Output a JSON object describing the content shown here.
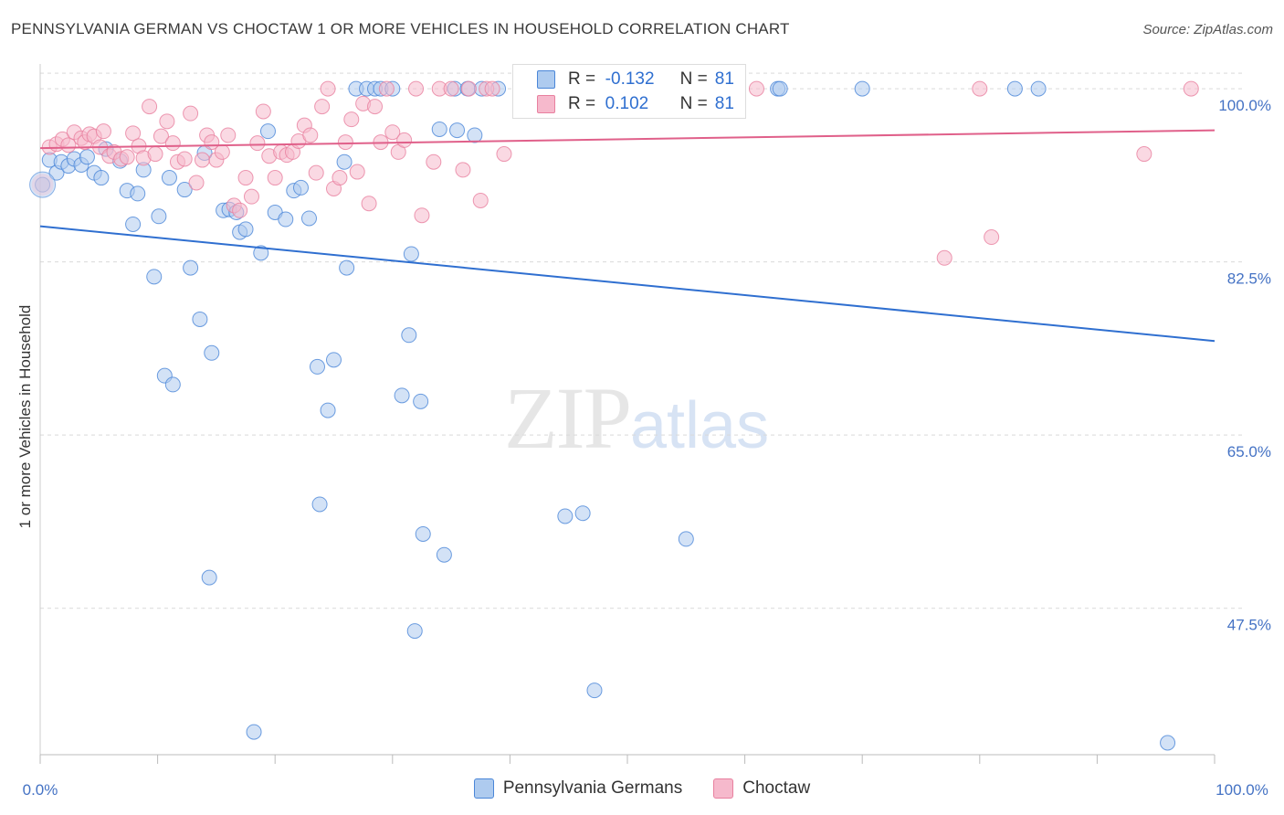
{
  "title": "PENNSYLVANIA GERMAN VS CHOCTAW 1 OR MORE VEHICLES IN HOUSEHOLD CORRELATION CHART",
  "source": "Source: ZipAtlas.com",
  "watermark": {
    "zip": "ZIP",
    "atlas": "atlas"
  },
  "legend": {
    "r_label": "R =",
    "n_label": "N =",
    "rows": [
      {
        "r": "-0.132",
        "n": "81"
      },
      {
        "r": "0.102",
        "n": "81"
      }
    ]
  },
  "colors": {
    "blue_fill": "#aecbef",
    "blue_stroke": "#4a86d8",
    "blue_line": "#2f6fd0",
    "pink_fill": "#f6b9cc",
    "pink_stroke": "#e8809f",
    "pink_line": "#e0608a",
    "grid": "#d9d9d9",
    "tick_text": "#4472c4"
  },
  "chart_data": {
    "type": "scatter",
    "xlabel": "",
    "ylabel": "1 or more Vehicles in Household",
    "xlim": [
      0,
      100
    ],
    "ylim": [
      32.7,
      102.5
    ],
    "x_tick_labels": [
      "0.0%",
      "100.0%"
    ],
    "y_ticks": [
      47.5,
      65.0,
      82.5,
      100.0
    ],
    "y_tick_labels": [
      "47.5%",
      "65.0%",
      "82.5%",
      "100.0%"
    ],
    "grid": true,
    "legend_position": "bottom",
    "series": [
      {
        "name": "Pennsylvania Germans",
        "trend": {
          "x": [
            0,
            100
          ],
          "y": [
            86.1,
            74.5
          ]
        },
        "points": [
          [
            0.2,
            90.3
          ],
          [
            0.8,
            92.8
          ],
          [
            1.4,
            91.5
          ],
          [
            1.8,
            92.6
          ],
          [
            2.4,
            92.2
          ],
          [
            2.9,
            92.9
          ],
          [
            3.5,
            92.3
          ],
          [
            4.0,
            93.1
          ],
          [
            4.6,
            91.5
          ],
          [
            5.2,
            91.0
          ],
          [
            5.6,
            93.9
          ],
          [
            6.8,
            92.7
          ],
          [
            7.4,
            89.7
          ],
          [
            7.9,
            86.3
          ],
          [
            8.3,
            89.4
          ],
          [
            8.8,
            91.8
          ],
          [
            9.7,
            81.0
          ],
          [
            10.1,
            87.1
          ],
          [
            10.6,
            71.0
          ],
          [
            11.0,
            91.0
          ],
          [
            11.3,
            70.1
          ],
          [
            12.3,
            89.8
          ],
          [
            12.8,
            81.9
          ],
          [
            13.6,
            76.7
          ],
          [
            14.0,
            93.5
          ],
          [
            14.4,
            50.6
          ],
          [
            14.6,
            73.3
          ],
          [
            15.6,
            87.7
          ],
          [
            16.1,
            87.8
          ],
          [
            16.7,
            87.5
          ],
          [
            17.0,
            85.5
          ],
          [
            17.5,
            85.8
          ],
          [
            18.2,
            35.0
          ],
          [
            18.8,
            83.4
          ],
          [
            19.4,
            95.7
          ],
          [
            20.0,
            87.5
          ],
          [
            20.9,
            86.8
          ],
          [
            21.6,
            89.7
          ],
          [
            22.2,
            90.0
          ],
          [
            22.9,
            86.9
          ],
          [
            23.6,
            71.9
          ],
          [
            23.8,
            58.0
          ],
          [
            24.5,
            67.5
          ],
          [
            25.0,
            72.6
          ],
          [
            25.9,
            92.6
          ],
          [
            26.1,
            81.9
          ],
          [
            26.9,
            100.0
          ],
          [
            27.8,
            100.0
          ],
          [
            28.5,
            100.0
          ],
          [
            29.0,
            100.0
          ],
          [
            30.0,
            100.0
          ],
          [
            30.8,
            69.0
          ],
          [
            31.4,
            75.1
          ],
          [
            31.6,
            83.3
          ],
          [
            31.9,
            45.2
          ],
          [
            32.4,
            68.4
          ],
          [
            32.6,
            55.0
          ],
          [
            34.0,
            95.9
          ],
          [
            34.4,
            52.9
          ],
          [
            35.3,
            100.0
          ],
          [
            35.5,
            95.8
          ],
          [
            36.4,
            100.0
          ],
          [
            37.0,
            95.3
          ],
          [
            37.6,
            100.0
          ],
          [
            39.0,
            100.0
          ],
          [
            41.0,
            100.0
          ],
          [
            44.7,
            56.8
          ],
          [
            46.2,
            57.1
          ],
          [
            46.7,
            100.0
          ],
          [
            47.2,
            39.2
          ],
          [
            47.8,
            100.0
          ],
          [
            51.0,
            100.0
          ],
          [
            54.0,
            100.0
          ],
          [
            55.0,
            54.5
          ],
          [
            58.0,
            100.0
          ],
          [
            62.8,
            100.0
          ],
          [
            63.0,
            100.0
          ],
          [
            70.0,
            100.0
          ],
          [
            83.0,
            100.0
          ],
          [
            85.0,
            100.0
          ],
          [
            96.0,
            33.9
          ]
        ]
      },
      {
        "name": "Choctaw",
        "trend": {
          "x": [
            0,
            100
          ],
          "y": [
            94.0,
            95.8
          ]
        },
        "points": [
          [
            0.8,
            94.1
          ],
          [
            1.4,
            94.4
          ],
          [
            1.9,
            94.9
          ],
          [
            2.4,
            94.3
          ],
          [
            2.9,
            95.6
          ],
          [
            3.5,
            95.0
          ],
          [
            3.8,
            94.6
          ],
          [
            4.2,
            95.4
          ],
          [
            4.6,
            95.2
          ],
          [
            5.1,
            94.1
          ],
          [
            5.4,
            95.7
          ],
          [
            5.9,
            93.2
          ],
          [
            6.3,
            93.6
          ],
          [
            6.9,
            92.9
          ],
          [
            7.4,
            93.1
          ],
          [
            7.9,
            95.5
          ],
          [
            8.4,
            94.2
          ],
          [
            8.8,
            93.0
          ],
          [
            9.3,
            98.2
          ],
          [
            9.8,
            93.4
          ],
          [
            10.3,
            95.2
          ],
          [
            10.8,
            96.7
          ],
          [
            11.3,
            94.5
          ],
          [
            11.7,
            92.6
          ],
          [
            12.3,
            92.9
          ],
          [
            12.8,
            97.5
          ],
          [
            13.3,
            90.5
          ],
          [
            13.8,
            92.8
          ],
          [
            14.2,
            95.3
          ],
          [
            14.6,
            94.6
          ],
          [
            15.0,
            92.8
          ],
          [
            15.5,
            93.6
          ],
          [
            16.0,
            95.3
          ],
          [
            16.5,
            88.2
          ],
          [
            17.0,
            87.7
          ],
          [
            17.5,
            91.0
          ],
          [
            18.0,
            89.1
          ],
          [
            18.5,
            94.5
          ],
          [
            19.0,
            97.7
          ],
          [
            19.5,
            93.2
          ],
          [
            20.0,
            91.0
          ],
          [
            20.5,
            93.6
          ],
          [
            21.0,
            93.3
          ],
          [
            21.5,
            93.6
          ],
          [
            22.0,
            94.7
          ],
          [
            22.5,
            96.3
          ],
          [
            23.0,
            95.3
          ],
          [
            23.5,
            91.5
          ],
          [
            24.0,
            98.2
          ],
          [
            24.5,
            100.0
          ],
          [
            25.0,
            89.9
          ],
          [
            25.5,
            91.0
          ],
          [
            26.0,
            94.6
          ],
          [
            26.5,
            96.9
          ],
          [
            27.0,
            91.6
          ],
          [
            27.5,
            98.5
          ],
          [
            28.0,
            88.4
          ],
          [
            28.5,
            98.2
          ],
          [
            29.0,
            94.6
          ],
          [
            29.5,
            100.0
          ],
          [
            30.0,
            95.6
          ],
          [
            30.5,
            93.6
          ],
          [
            31.0,
            94.8
          ],
          [
            32.0,
            100.0
          ],
          [
            32.5,
            87.2
          ],
          [
            33.5,
            92.6
          ],
          [
            34.0,
            100.0
          ],
          [
            35.0,
            100.0
          ],
          [
            36.0,
            91.8
          ],
          [
            36.5,
            100.0
          ],
          [
            37.5,
            88.7
          ],
          [
            38.0,
            100.0
          ],
          [
            38.5,
            100.0
          ],
          [
            39.5,
            93.4
          ],
          [
            48.0,
            100.0
          ],
          [
            61.0,
            100.0
          ],
          [
            77.0,
            82.9
          ],
          [
            80.0,
            100.0
          ],
          [
            81.0,
            85.0
          ],
          [
            94.0,
            93.4
          ],
          [
            98.0,
            100.0
          ]
        ]
      }
    ]
  }
}
